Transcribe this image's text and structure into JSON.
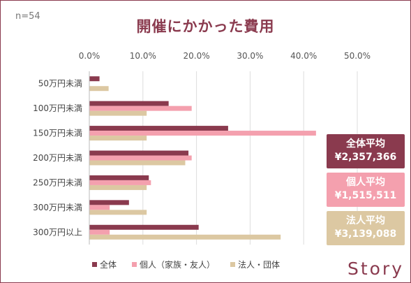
{
  "page": {
    "sample_size": "n=54",
    "title": "開催にかかった費用",
    "brand": "Story"
  },
  "badges": [
    {
      "label": "全体平均",
      "value": "¥2,357,366",
      "color": "#8a3a4e"
    },
    {
      "label": "個人平均",
      "value": "¥1,515,511",
      "color": "#f4a0ae"
    },
    {
      "label": "法人平均",
      "value": "¥3,139,088",
      "color": "#dcc8a2"
    }
  ],
  "chart_data": {
    "type": "bar",
    "orientation": "horizontal",
    "categories": [
      "50万円未満",
      "100万円未満",
      "150万円未満",
      "200万円未満",
      "250万円未満",
      "300万円未満",
      "300万円以上"
    ],
    "series": [
      {
        "name": "全体",
        "color": "#8a3a4e",
        "values": [
          1.9,
          14.8,
          25.9,
          18.5,
          11.1,
          7.4,
          20.4
        ]
      },
      {
        "name": "個人（家族・友人）",
        "color": "#f4a0ae",
        "values": [
          0,
          19.1,
          42.3,
          19.1,
          11.5,
          3.8,
          3.8
        ]
      },
      {
        "name": "法人・団体",
        "color": "#dcc8a2",
        "values": [
          3.6,
          10.7,
          10.7,
          17.9,
          10.7,
          10.7,
          35.7
        ]
      }
    ],
    "xlim": [
      0,
      50
    ],
    "ticks": [
      "0.0%",
      "10.0%",
      "20.0%",
      "30.0%",
      "40.0%",
      "50.0%"
    ],
    "tick_values": [
      0,
      10,
      20,
      30,
      40,
      50
    ],
    "grid": true,
    "legend": "bottom"
  }
}
